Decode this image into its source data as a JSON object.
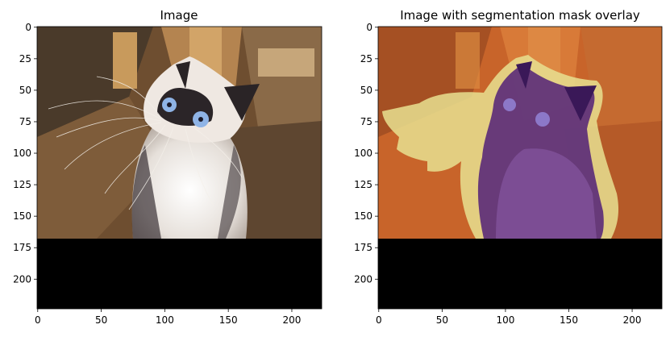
{
  "panels": [
    {
      "title": "Image",
      "x_ticks": [
        "0",
        "50",
        "100",
        "150",
        "200"
      ],
      "y_ticks": [
        "0",
        "25",
        "50",
        "75",
        "100",
        "125",
        "150",
        "175",
        "200"
      ],
      "overlay": false
    },
    {
      "title": "Image with segmentation mask overlay",
      "x_ticks": [
        "0",
        "50",
        "100",
        "150",
        "200"
      ],
      "y_ticks": [
        "0",
        "25",
        "50",
        "75",
        "100",
        "125",
        "150",
        "175",
        "200"
      ],
      "overlay": true
    }
  ],
  "image_size": 224,
  "image_content_rows": 168,
  "tick_values_x": [
    0,
    50,
    100,
    150,
    200
  ],
  "tick_values_y": [
    0,
    25,
    50,
    75,
    100,
    125,
    150,
    175,
    200
  ],
  "colors": {
    "floor": "#7a5a38",
    "wood": "#c89a5c",
    "cat_fur": "#f0ece6",
    "cat_dark": "#2a2426",
    "eye": "#8fb4e6",
    "padding": "#000000",
    "mask_background": "#c8642a",
    "mask_cat": "#5a2a78",
    "mask_boundary": "#e8e090"
  }
}
